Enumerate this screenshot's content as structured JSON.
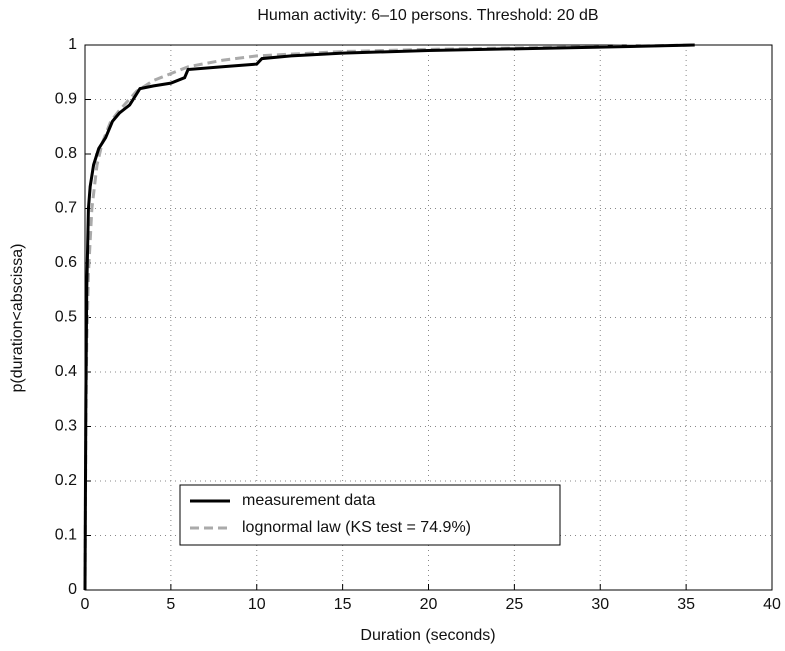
{
  "chart_data": {
    "type": "line",
    "title": "Human activity: 6–10 persons. Threshold: 20 dB",
    "xlabel": "Duration (seconds)",
    "ylabel": "p(duration<abscissa)",
    "xlim": [
      0,
      40
    ],
    "xticks": [
      0,
      5,
      10,
      15,
      20,
      25,
      30,
      35,
      40
    ],
    "ylim": [
      0,
      1
    ],
    "yticks": [
      0,
      0.1,
      0.2,
      0.3,
      0.4,
      0.5,
      0.6,
      0.7,
      0.8,
      0.9,
      1
    ],
    "grid": true,
    "legend": "lower left",
    "series": [
      {
        "name": "measurement data",
        "color": "#000000",
        "linestyle": "solid",
        "x": [
          0,
          0.05,
          0.1,
          0.2,
          0.3,
          0.5,
          0.8,
          1.2,
          1.6,
          2,
          2.6,
          3,
          3.2,
          4,
          5,
          5.8,
          6,
          8,
          10,
          10.3,
          12,
          15,
          20,
          25,
          30,
          35.5
        ],
        "values": [
          0,
          0.35,
          0.55,
          0.7,
          0.74,
          0.78,
          0.81,
          0.83,
          0.86,
          0.875,
          0.89,
          0.91,
          0.92,
          0.925,
          0.93,
          0.94,
          0.955,
          0.96,
          0.965,
          0.975,
          0.98,
          0.985,
          0.99,
          0.993,
          0.996,
          1
        ]
      },
      {
        "name": "lognormal law (KS test = 74.9%)",
        "color": "#aaaaaa",
        "linestyle": "dashed",
        "x": [
          0,
          0.05,
          0.1,
          0.2,
          0.4,
          0.7,
          1,
          1.5,
          2,
          3,
          4,
          6,
          8,
          10,
          15,
          20,
          30,
          35.5
        ],
        "values": [
          0,
          0.3,
          0.45,
          0.58,
          0.7,
          0.78,
          0.82,
          0.86,
          0.88,
          0.915,
          0.935,
          0.96,
          0.972,
          0.98,
          0.988,
          0.992,
          0.997,
          1
        ]
      }
    ]
  }
}
